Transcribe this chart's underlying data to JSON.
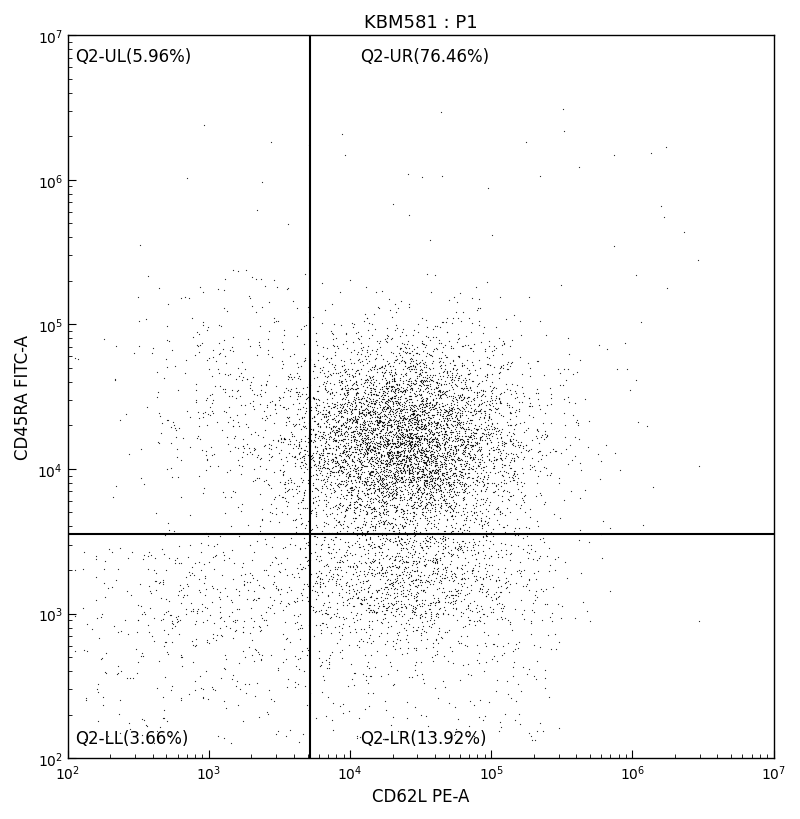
{
  "title": "KBM581 : P1",
  "xlabel": "CD62L PE-A",
  "ylabel": "CD45RA FITC-A",
  "xlim_log": [
    2,
    7
  ],
  "ylim_log": [
    2,
    7
  ],
  "gate_x_log": 3.72,
  "gate_y_log": 3.55,
  "quadrant_labels": {
    "UL": "Q2-UL(5.96%)",
    "UR": "Q2-UR(76.46%)",
    "LL": "Q2-LL(3.66%)",
    "LR": "Q2-LR(13.92%)"
  },
  "background_color": "#ffffff",
  "dot_color": "#000000",
  "gate_line_color": "#000000",
  "label_fontsize": 12,
  "title_fontsize": 13,
  "axis_label_fontsize": 12,
  "seed": 42
}
